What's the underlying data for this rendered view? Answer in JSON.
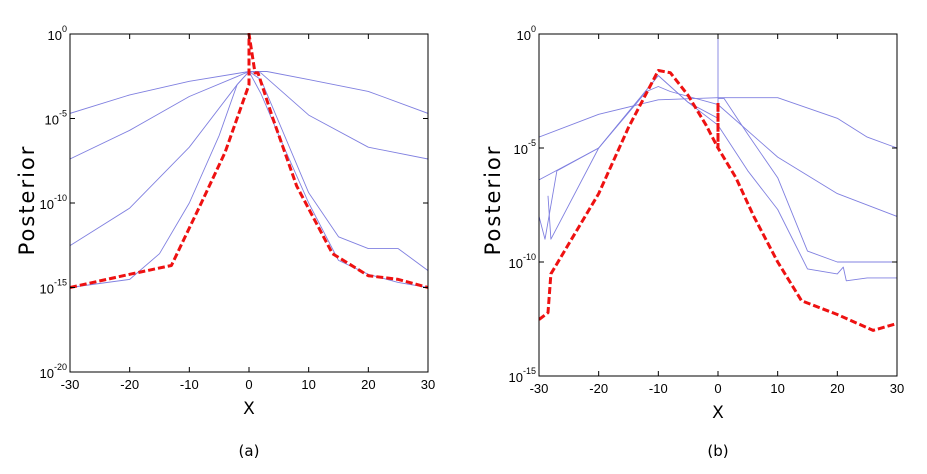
{
  "chart_data": [
    {
      "type": "line",
      "caption": "(a)",
      "xlabel": "X",
      "ylabel": "Posterior",
      "xlim": [
        -30,
        30
      ],
      "ylim": [
        1e-20,
        1
      ],
      "yscale": "log",
      "grid": false,
      "x_ticks": [
        -30,
        -20,
        -10,
        0,
        10,
        20,
        30
      ],
      "x_tick_labels": [
        "-30",
        "-20",
        "-10",
        "0",
        "10",
        "20",
        "30"
      ],
      "y_ticks": [
        1,
        1e-05,
        1e-10,
        1e-15,
        1e-20
      ],
      "y_tick_labels": [
        {
          "base": "10",
          "exp": "0"
        },
        {
          "base": "10",
          "exp": "-5"
        },
        {
          "base": "10",
          "exp": "-10"
        },
        {
          "base": "10",
          "exp": "-15"
        },
        {
          "base": "10",
          "exp": "-20"
        }
      ],
      "series": [
        {
          "color": "#8080e0",
          "style": "solid",
          "x": [
            -30,
            -20,
            -10,
            0,
            3,
            10,
            20,
            30
          ],
          "y": [
            2e-05,
            0.00025,
            0.0016,
            0.006,
            0.006,
            0.002,
            0.0004,
            2e-05
          ]
        },
        {
          "color": "#8080e0",
          "style": "solid",
          "x": [
            -30,
            -20,
            -10,
            -2,
            0,
            2,
            10,
            20,
            30
          ],
          "y": [
            4e-08,
            2e-06,
            0.0002,
            0.003,
            0.006,
            0.005,
            1.6e-05,
            2e-07,
            4e-08
          ]
        },
        {
          "color": "#8080e0",
          "style": "solid",
          "x": [
            -30,
            -20,
            -10,
            -2,
            0,
            2,
            10,
            15,
            20,
            25,
            30
          ],
          "y": [
            3e-13,
            5e-11,
            2e-07,
            0.001,
            0.006,
            0.002,
            4e-10,
            1e-12,
            2e-13,
            2e-13,
            1e-14
          ]
        },
        {
          "color": "#8080e0",
          "style": "solid",
          "x": [
            -30,
            -20,
            -15,
            -10,
            -5,
            -2,
            0,
            2,
            5,
            10,
            15,
            20,
            25,
            30
          ],
          "y": [
            1e-15,
            3e-15,
            1e-13,
            1e-10,
            1e-06,
            0.001,
            0.006,
            0.0003,
            1e-06,
            1e-10,
            4e-14,
            6e-15,
            2e-15,
            1e-15
          ]
        },
        {
          "color": "#ee1111",
          "style": "dashed",
          "x": [
            -30,
            -20,
            -13,
            -8,
            -4,
            -1,
            0,
            0,
            1,
            1.5,
            4,
            8,
            14,
            20,
            25,
            30
          ],
          "y": [
            1e-15,
            6e-15,
            2e-14,
            1e-10,
            1e-07,
            0.0001,
            0.001,
            1,
            0.005,
            0.005,
            1e-05,
            1e-09,
            1e-13,
            5e-15,
            3e-15,
            1e-15
          ]
        }
      ]
    },
    {
      "type": "line",
      "caption": "(b)",
      "xlabel": "X",
      "ylabel": "Posterior",
      "xlim": [
        -30,
        30
      ],
      "ylim": [
        1e-15,
        1
      ],
      "yscale": "log",
      "grid": false,
      "x_ticks": [
        -30,
        -20,
        -10,
        0,
        10,
        20,
        30
      ],
      "x_tick_labels": [
        "-30",
        "-20",
        "-10",
        "0",
        "10",
        "20",
        "30"
      ],
      "y_ticks": [
        1,
        1e-05,
        1e-10,
        1e-15
      ],
      "y_tick_labels": [
        {
          "base": "10",
          "exp": "0"
        },
        {
          "base": "10",
          "exp": "-5"
        },
        {
          "base": "10",
          "exp": "-10"
        },
        {
          "base": "10",
          "exp": "-15"
        }
      ],
      "series": [
        {
          "color": "#8080e0",
          "style": "solid",
          "x": [
            -30,
            -20,
            -10,
            0,
            10,
            20,
            25,
            30
          ],
          "y": [
            3e-05,
            0.0003,
            0.0013,
            0.0016,
            0.0016,
            0.0002,
            3e-05,
            1e-05
          ]
        },
        {
          "color": "#8080e0",
          "style": "solid",
          "x": [
            -30,
            -20,
            -12,
            -10,
            -8,
            0,
            10,
            20,
            30
          ],
          "y": [
            4e-07,
            1e-05,
            0.003,
            0.005,
            0.003,
            0.0008,
            4e-06,
            1e-07,
            1e-08
          ]
        },
        {
          "color": "#8080e0",
          "style": "solid",
          "x": [
            -30,
            -29,
            -27,
            -20,
            -10,
            -5,
            0,
            0,
            0,
            1,
            5,
            10,
            15,
            20,
            25,
            30
          ],
          "y": [
            1e-08,
            1e-09,
            1e-06,
            1e-05,
            0.015,
            0.001,
            0.0002,
            0.9,
            0.0015,
            0.0015,
            4e-05,
            5e-07,
            3e-10,
            1e-10,
            1e-10,
            1e-10
          ]
        },
        {
          "color": "#8080e0",
          "style": "solid",
          "x": [
            -28.5,
            -28,
            -20,
            -10,
            -5,
            0,
            5,
            10,
            15,
            20,
            21,
            21.5,
            25,
            30
          ],
          "y": [
            8e-08,
            1e-09,
            1e-05,
            0.015,
            0.001,
            0.0001,
            1e-06,
            2e-08,
            5e-11,
            3e-11,
            6e-11,
            1.5e-11,
            2e-11,
            2e-11
          ]
        },
        {
          "color": "#ee1111",
          "style": "dashed",
          "x": [
            -30,
            -28.5,
            -28,
            -20,
            -15,
            -10,
            -8,
            -5,
            -2,
            0,
            0,
            0,
            3,
            6,
            10,
            14,
            20,
            26,
            30
          ],
          "y": [
            3e-13,
            6e-13,
            3e-11,
            1e-07,
            8e-05,
            0.025,
            0.02,
            0.002,
            0.0001,
            1e-05,
            0.001,
            1e-05,
            5e-07,
            1e-08,
            1e-10,
            2e-12,
            5e-13,
            1e-13,
            2e-13
          ]
        }
      ]
    }
  ]
}
